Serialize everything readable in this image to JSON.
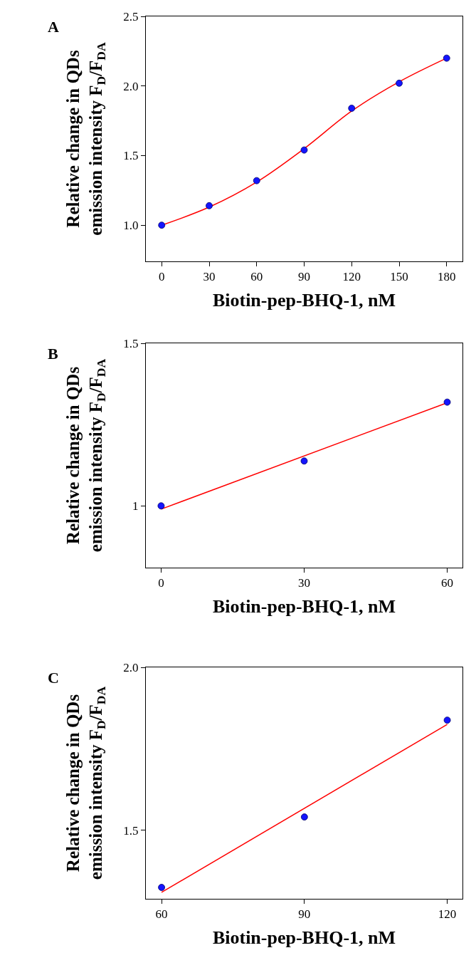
{
  "chart_data": [
    {
      "type": "scatter",
      "title": "A",
      "xlabel": "Biotin-pep-BHQ-1, nM",
      "ylabel": "Relative change in QDs\nemission intensity F$_{D}$/F$_{DA}$",
      "grid": false,
      "xlim": [
        -10,
        190
      ],
      "xticks": [
        0,
        30,
        60,
        90,
        120,
        150,
        180
      ],
      "ylim": [
        0.74,
        2.5
      ],
      "yticks": [
        {
          "value": 1,
          "label": "1.0"
        },
        {
          "value": 1.5,
          "label": "1.5"
        },
        {
          "value": 2,
          "label": "2.0"
        },
        {
          "value": 2.5,
          "label": "2.5"
        }
      ],
      "series": [
        {
          "type": "line",
          "color": "#ff0000",
          "x": [
            0,
            30,
            60,
            90,
            120,
            150,
            180
          ],
          "values": [
            1.0,
            1.13,
            1.31,
            1.55,
            1.82,
            2.03,
            2.2
          ]
        },
        {
          "type": "scatter",
          "marker": "circle",
          "color": "#1414ff",
          "x": [
            0,
            30,
            60,
            90,
            120,
            150,
            180
          ],
          "values": [
            1.0,
            1.14,
            1.32,
            1.54,
            1.84,
            2.02,
            2.2
          ]
        }
      ]
    },
    {
      "type": "scatter",
      "title": "B",
      "xlabel": "Biotin-pep-BHQ-1, nM",
      "ylabel": "Relative change in QDs\nemission intensity F$_{D}$/F$_{DA}$",
      "grid": false,
      "xlim": [
        -3.2,
        63.2
      ],
      "xticks": [
        0,
        30,
        60
      ],
      "ylim": [
        0.81,
        1.5
      ],
      "yticks": [
        {
          "value": 1,
          "label": "1"
        },
        {
          "value": 1.5,
          "label": "1.5"
        }
      ],
      "series": [
        {
          "type": "line",
          "color": "#ff0000",
          "x": [
            0,
            60
          ],
          "values": [
            0.99,
            1.317
          ]
        },
        {
          "type": "scatter",
          "marker": "circle",
          "color": "#1414ff",
          "x": [
            0,
            30,
            60
          ],
          "values": [
            1.0,
            1.138,
            1.319
          ]
        }
      ]
    },
    {
      "type": "scatter",
      "title": "C",
      "xlabel": "Biotin-pep-BHQ-1, nM",
      "ylabel": "Relative change in QDs\nemission intensity F$_{D}$/F$_{DA}$",
      "grid": false,
      "xlim": [
        56.7,
        123.2
      ],
      "xticks": [
        60,
        90,
        120
      ],
      "ylim": [
        1.29,
        2.0
      ],
      "yticks": [
        {
          "value": 1.5,
          "label": "1.5"
        },
        {
          "value": 2,
          "label": "2.0"
        }
      ],
      "series": [
        {
          "type": "line",
          "color": "#ff0000",
          "x": [
            60,
            120
          ],
          "values": [
            1.31,
            1.825
          ]
        },
        {
          "type": "scatter",
          "marker": "circle",
          "color": "#1414ff",
          "x": [
            60,
            90,
            120
          ],
          "values": [
            1.325,
            1.541,
            1.838
          ]
        }
      ]
    }
  ]
}
